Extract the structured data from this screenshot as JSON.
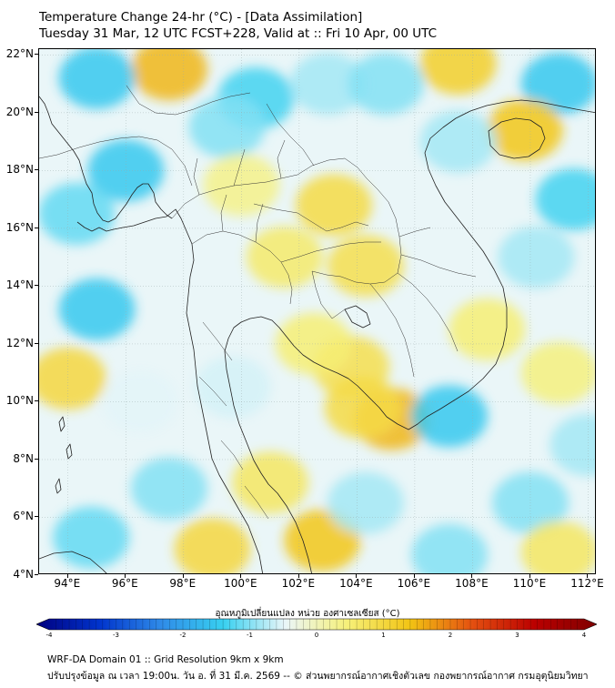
{
  "title": {
    "line1": "Temperature Change 24-hr (°C) - [Data Assimilation]",
    "line2": "Tuesday 31 Mar, 12 UTC FCST+228, Valid at :: Fri 10 Apr, 00 UTC"
  },
  "map": {
    "lon_range": [
      93,
      112.3
    ],
    "lat_range": [
      4,
      22.2
    ],
    "lat_ticks": [
      {
        "value": 22,
        "label": "22°N"
      },
      {
        "value": 20,
        "label": "20°N"
      },
      {
        "value": 18,
        "label": "18°N"
      },
      {
        "value": 16,
        "label": "16°N"
      },
      {
        "value": 14,
        "label": "14°N"
      },
      {
        "value": 12,
        "label": "12°N"
      },
      {
        "value": 10,
        "label": "10°N"
      },
      {
        "value": 8,
        "label": "8°N"
      },
      {
        "value": 6,
        "label": "6°N"
      },
      {
        "value": 4,
        "label": "4°N"
      }
    ],
    "lon_ticks": [
      {
        "value": 94,
        "label": "94°E"
      },
      {
        "value": 96,
        "label": "96°E"
      },
      {
        "value": 98,
        "label": "98°E"
      },
      {
        "value": 100,
        "label": "100°E"
      },
      {
        "value": 102,
        "label": "102°E"
      },
      {
        "value": 104,
        "label": "104°E"
      },
      {
        "value": 106,
        "label": "106°E"
      },
      {
        "value": 108,
        "label": "108°E"
      },
      {
        "value": 110,
        "label": "110°E"
      },
      {
        "value": 112,
        "label": "112°E"
      }
    ],
    "field_blobs": [
      {
        "lon": 97.5,
        "lat": 21.5,
        "value": 0.9
      },
      {
        "lon": 95.0,
        "lat": 21.2,
        "value": -0.9
      },
      {
        "lon": 100.5,
        "lat": 20.5,
        "value": -0.8
      },
      {
        "lon": 99.5,
        "lat": 19.5,
        "value": -0.6
      },
      {
        "lon": 103.0,
        "lat": 21.0,
        "value": -0.5
      },
      {
        "lon": 105.0,
        "lat": 21.0,
        "value": -0.6
      },
      {
        "lon": 107.5,
        "lat": 21.7,
        "value": 0.7
      },
      {
        "lon": 111.0,
        "lat": 21.0,
        "value": -0.9
      },
      {
        "lon": 109.8,
        "lat": 19.4,
        "value": 0.8
      },
      {
        "lon": 107.5,
        "lat": 19.0,
        "value": -0.5
      },
      {
        "lon": 111.5,
        "lat": 17.0,
        "value": -0.8
      },
      {
        "lon": 96.0,
        "lat": 18.0,
        "value": -0.9
      },
      {
        "lon": 94.3,
        "lat": 16.5,
        "value": -0.7
      },
      {
        "lon": 103.2,
        "lat": 16.8,
        "value": 0.55
      },
      {
        "lon": 101.5,
        "lat": 15.0,
        "value": 0.35
      },
      {
        "lon": 104.3,
        "lat": 14.7,
        "value": 0.5
      },
      {
        "lon": 100.0,
        "lat": 17.5,
        "value": 0.2
      },
      {
        "lon": 110.2,
        "lat": 15.0,
        "value": -0.5
      },
      {
        "lon": 95.0,
        "lat": 13.2,
        "value": -0.9
      },
      {
        "lon": 94.0,
        "lat": 10.8,
        "value": 0.6
      },
      {
        "lon": 96.5,
        "lat": 10.0,
        "value": -0.3
      },
      {
        "lon": 103.8,
        "lat": 11.2,
        "value": 0.5
      },
      {
        "lon": 102.5,
        "lat": 12.0,
        "value": 0.3
      },
      {
        "lon": 105.2,
        "lat": 9.4,
        "value": 0.9
      },
      {
        "lon": 104.2,
        "lat": 9.8,
        "value": 0.55
      },
      {
        "lon": 107.2,
        "lat": 9.5,
        "value": -0.9
      },
      {
        "lon": 111.0,
        "lat": 11.0,
        "value": 0.25
      },
      {
        "lon": 108.5,
        "lat": 12.5,
        "value": 0.3
      },
      {
        "lon": 97.5,
        "lat": 7.0,
        "value": -0.6
      },
      {
        "lon": 94.8,
        "lat": 5.3,
        "value": -0.7
      },
      {
        "lon": 101.0,
        "lat": 7.2,
        "value": 0.4
      },
      {
        "lon": 99.0,
        "lat": 4.9,
        "value": 0.6
      },
      {
        "lon": 102.8,
        "lat": 5.2,
        "value": 0.8
      },
      {
        "lon": 104.3,
        "lat": 6.5,
        "value": -0.5
      },
      {
        "lon": 107.2,
        "lat": 4.7,
        "value": -0.6
      },
      {
        "lon": 110.0,
        "lat": 6.5,
        "value": -0.6
      },
      {
        "lon": 112.0,
        "lat": 8.5,
        "value": -0.5
      },
      {
        "lon": 111.0,
        "lat": 4.8,
        "value": 0.4
      },
      {
        "lon": 99.7,
        "lat": 10.5,
        "value": -0.35
      }
    ]
  },
  "colorbar": {
    "title": "อุณหภูมิเปลี่ยนแปลง หน่วย องศาเซลเซียส (°C)",
    "min": -4,
    "max": 4,
    "ticks": [
      {
        "value": -4,
        "label": "-4"
      },
      {
        "value": -3,
        "label": "-3"
      },
      {
        "value": -2,
        "label": "-2"
      },
      {
        "value": -1,
        "label": "-1"
      },
      {
        "value": 0,
        "label": "0"
      },
      {
        "value": 1,
        "label": "1"
      },
      {
        "value": 2,
        "label": "2"
      },
      {
        "value": 3,
        "label": "3"
      },
      {
        "value": 4,
        "label": "4"
      }
    ],
    "colors": [
      "#00007f",
      "#0033cc",
      "#2f8be8",
      "#38d0f0",
      "#eaf6f8",
      "#f6f078",
      "#f2c414",
      "#e45010",
      "#bb0000",
      "#7f0000"
    ]
  },
  "footer": {
    "line1": "WRF-DA Domain 01 :: Grid Resolution 9km x 9km",
    "line2": "ปรับปรุงข้อมูล ณ เวลา 19:00น. วัน อ. ที่ 31 มี.ค. 2569 -- © ส่วนพยากรณ์อากาศเชิงตัวเลข กองพยากรณ์อากาศ กรมอุตุนิยมวิทยา"
  }
}
